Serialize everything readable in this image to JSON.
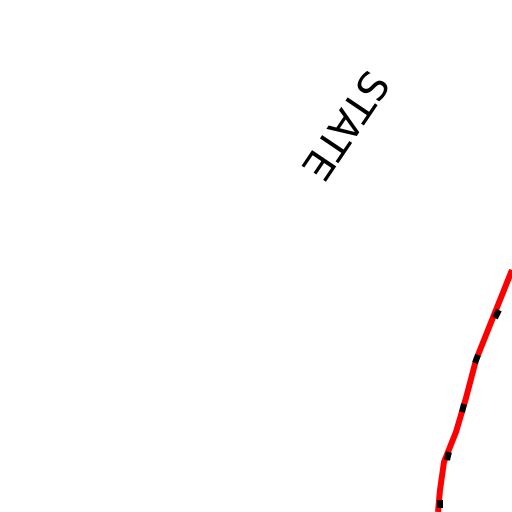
{
  "map": {
    "labels": [
      "STATE"
    ]
  }
}
